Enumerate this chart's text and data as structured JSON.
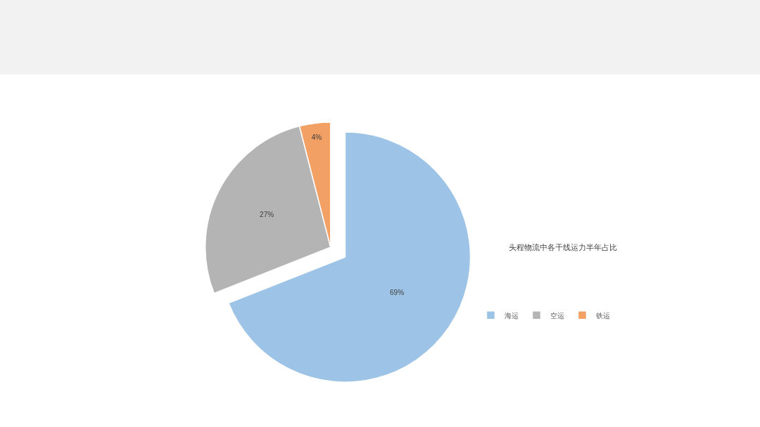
{
  "chart_data": {
    "type": "pie",
    "title": "头程物流中各干线运力半年占比",
    "categories": [
      "海运",
      "空运",
      "铁运"
    ],
    "values": [
      69,
      27,
      4
    ],
    "colors": [
      "#9dc3e6",
      "#b4b4b4",
      "#f2a064"
    ],
    "value_labels": [
      "69%",
      "27%",
      "4%"
    ],
    "legend": "right"
  }
}
